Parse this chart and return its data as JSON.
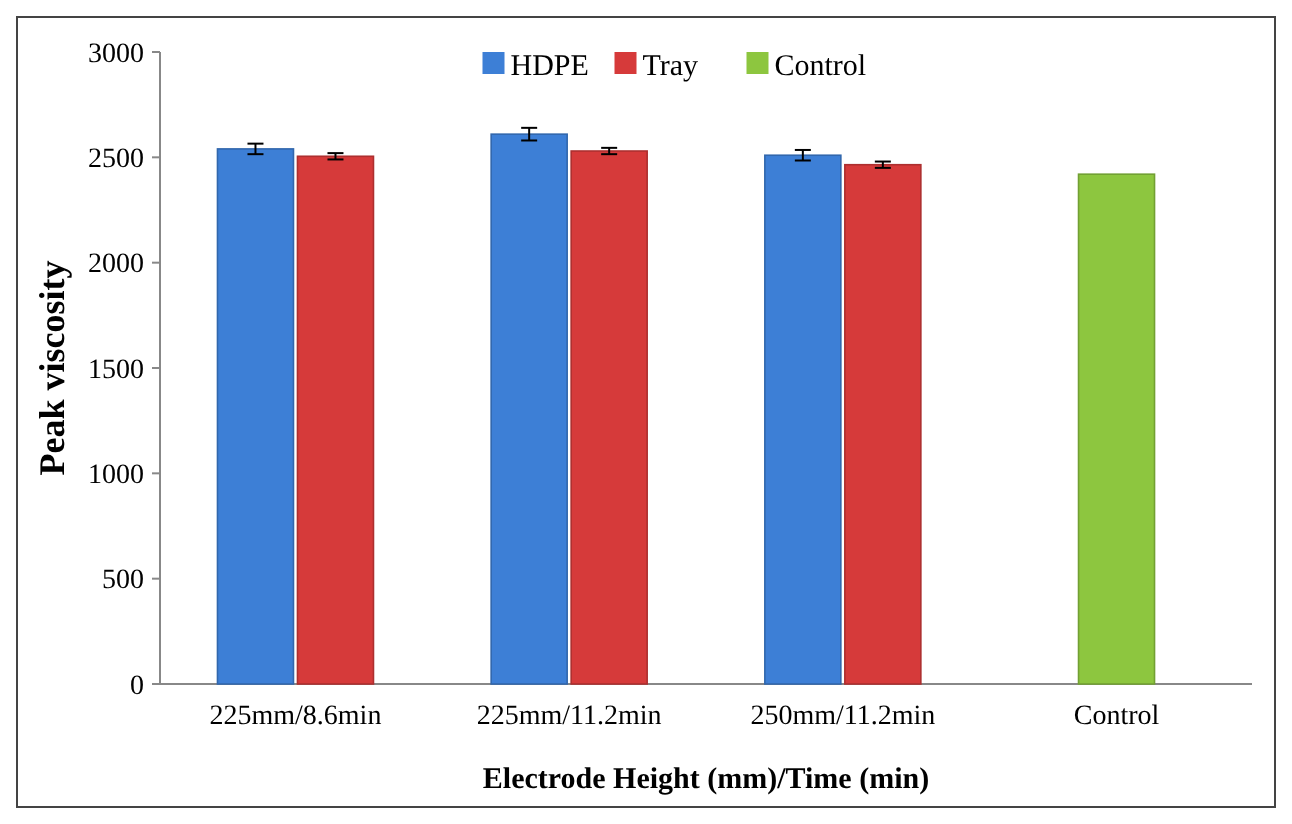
{
  "chart_data": {
    "type": "bar",
    "xlabel": "Electrode Height (mm)/Time (min)",
    "ylabel": "Peak viscosity",
    "categories": [
      "225mm/8.6min",
      "225mm/11.2min",
      "250mm/11.2min",
      "Control"
    ],
    "series": [
      {
        "name": "HDPE",
        "color": "#3d7fd6",
        "values": [
          2540,
          2610,
          2510,
          null
        ],
        "errors": [
          25,
          30,
          25,
          null
        ]
      },
      {
        "name": "Tray",
        "color": "#d63a3a",
        "values": [
          2505,
          2530,
          2465,
          null
        ],
        "errors": [
          15,
          15,
          15,
          null
        ]
      },
      {
        "name": "Control",
        "color": "#8dc63f",
        "values": [
          null,
          null,
          null,
          2420
        ]
      }
    ],
    "ylim": [
      0,
      3000
    ],
    "yticks": [
      0,
      500,
      1000,
      1500,
      2000,
      2500,
      3000
    ],
    "grid": false,
    "legend": "top"
  }
}
